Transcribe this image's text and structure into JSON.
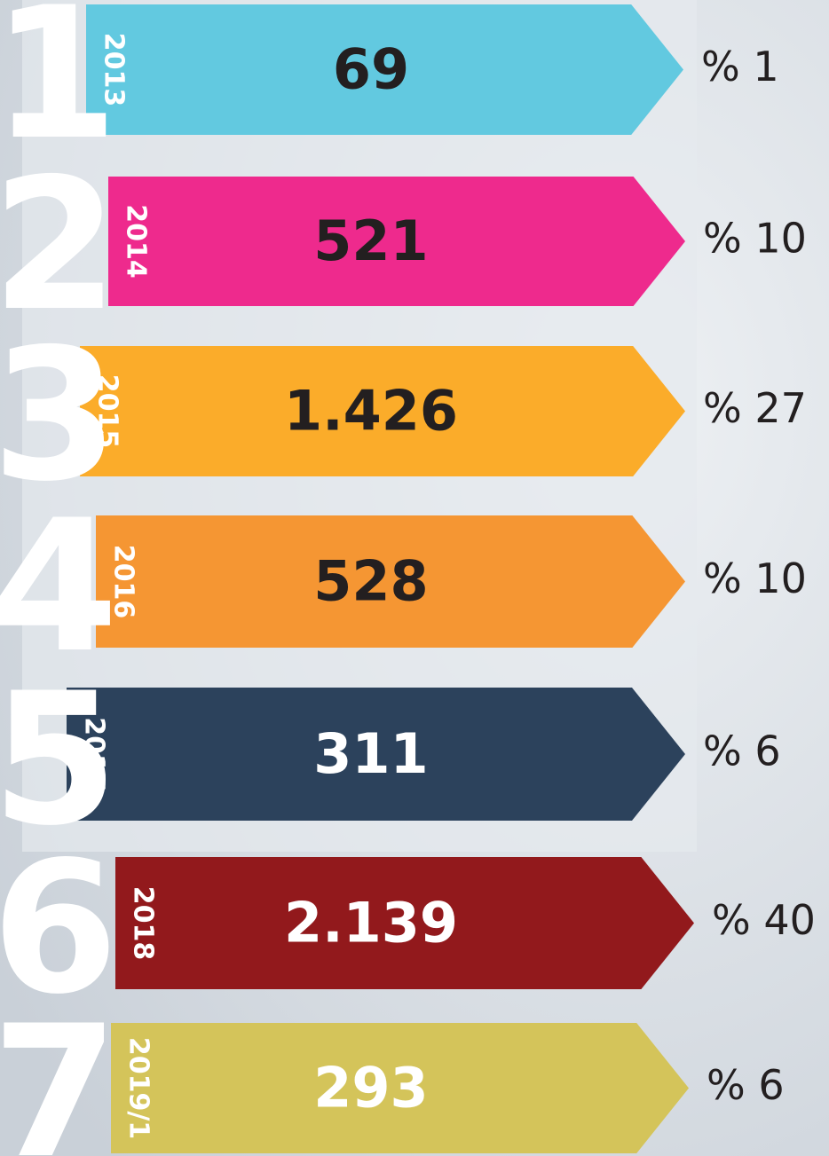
{
  "rows": [
    {
      "number": "1",
      "year": "2013",
      "value": "69",
      "percent": "% 1",
      "color": "#62c9e0"
    },
    {
      "number": "2",
      "year": "2014",
      "value": "521",
      "percent": "% 10",
      "color": "#ee2a8d"
    },
    {
      "number": "3",
      "year": "2015",
      "value": "1.426",
      "percent": "% 27",
      "color": "#fbac2a"
    },
    {
      "number": "4",
      "year": "2016",
      "value": "528",
      "percent": "% 10",
      "color": "#f59633"
    },
    {
      "number": "5",
      "year": "2017",
      "value": "311",
      "percent": "% 6",
      "color": "#2c425c"
    },
    {
      "number": "6",
      "year": "2018",
      "value": "2.139",
      "percent": "% 40",
      "color": "#92191c"
    },
    {
      "number": "7",
      "year": "2019/1",
      "value": "293",
      "percent": "% 6",
      "color": "#d4c45a"
    }
  ]
}
